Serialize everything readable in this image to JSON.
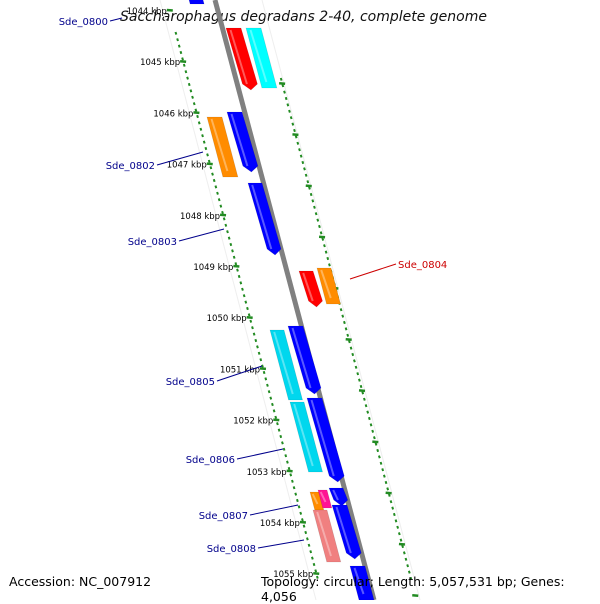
{
  "title": "Saccharophagus degradans 2-40, complete genome",
  "accession": "Accession: NC_007912",
  "topology": "Topology: circular; Length: 5,057,531 bp; Genes: 4,056",
  "ticks": [
    "1044 kbp",
    "1045 kbp",
    "1046 kbp",
    "1047 kbp",
    "1048 kbp",
    "1049 kbp",
    "1050 kbp",
    "1051 kbp",
    "1052 kbp",
    "1053 kbp",
    "1054 kbp",
    "1055 kbp"
  ],
  "genes": [
    {
      "label": "Sde_0800",
      "color": "#00008b"
    },
    {
      "label": "Sde_0802",
      "color": "#00008b"
    },
    {
      "label": "Sde_0803",
      "color": "#00008b"
    },
    {
      "label": "Sde_0804",
      "color": "#cc0000"
    },
    {
      "label": "Sde_0805",
      "color": "#00008b"
    },
    {
      "label": "Sde_0806",
      "color": "#00008b"
    },
    {
      "label": "Sde_0807",
      "color": "#00008b"
    },
    {
      "label": "Sde_0808",
      "color": "#00008b"
    }
  ],
  "colors": {
    "backbone": "#808080",
    "ticks": "#228b22",
    "red": "#ff0000",
    "blue": "#0000ff",
    "cyan": "#00d7ee",
    "cyan_light": "#00ffff",
    "orange": "#ff8c00",
    "pink": "#f08080",
    "magenta": "#ff1493"
  }
}
